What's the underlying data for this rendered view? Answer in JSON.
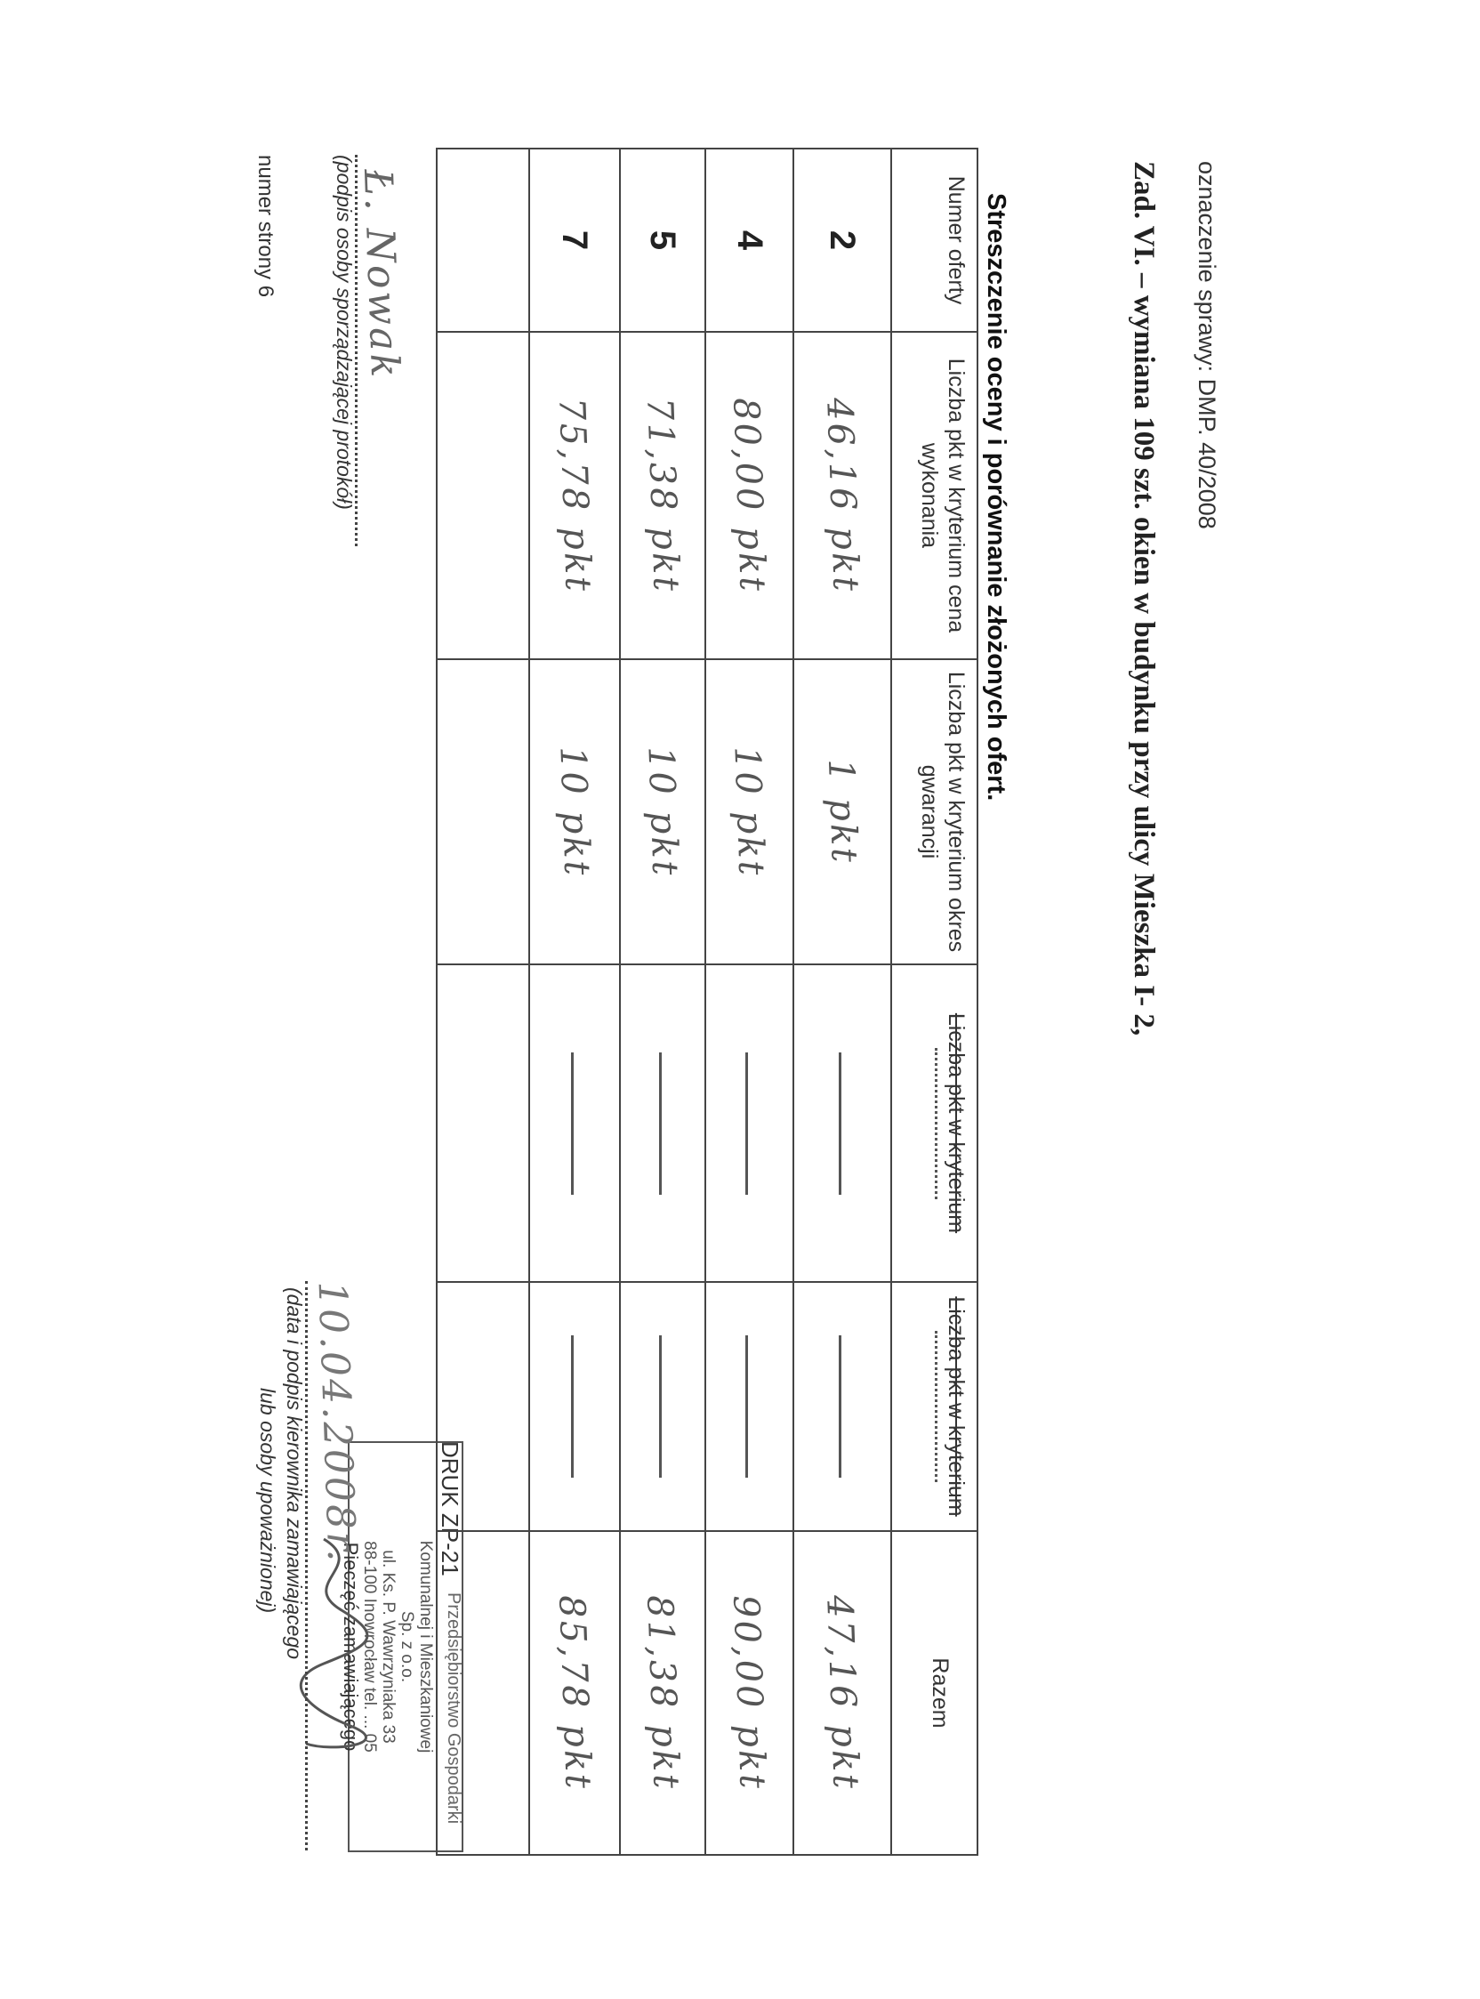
{
  "header": {
    "case_ref": "oznaczenie sprawy: DMP. 40/2008",
    "title": "Zad. VI. – wymiana 109 szt. okien w budynku przy ulicy Mieszka I- 2,",
    "section_title": "Streszczenie oceny i porównanie złożonych ofert."
  },
  "stamp": {
    "form_code": "DRUK ZP-21",
    "lines": [
      "Przedsiębiorstwo Gospodarki",
      "Komunalnej i Mieszkaniowej",
      "Sp. z o.o.",
      "ul. Ks. P. Wawrzyniaka 33",
      "88-100 Inowrocław",
      "tel. ... 05"
    ],
    "caption": "Pieczęć zamawiającego"
  },
  "table": {
    "headers": [
      "Numer oferty",
      "Liczba pkt w kryterium cena wykonania",
      "Liczba pkt w kryterium okres gwarancji",
      "Liczba pkt w kryterium",
      "Liczba pkt w kryterium",
      "Razem"
    ],
    "rows": [
      {
        "offer": "2",
        "price": "46,16 pkt",
        "warranty": "1 pkt",
        "c4": "—",
        "c5": "—",
        "total": "47,16 pkt"
      },
      {
        "offer": "4",
        "price": "80,00 pkt",
        "warranty": "10 pkt",
        "c4": "—",
        "c5": "—",
        "total": "90,00 pkt"
      },
      {
        "offer": "5",
        "price": "71,38 pkt",
        "warranty": "10 pkt",
        "c4": "—",
        "c5": "—",
        "total": "81,38 pkt"
      },
      {
        "offer": "7",
        "price": "75,78 pkt",
        "warranty": "10 pkt",
        "c4": "—",
        "c5": "—",
        "total": "85,78 pkt"
      }
    ]
  },
  "footer": {
    "preparer_signature": "Ł. Nowak",
    "preparer_caption": "(podpis osoby sporządzającej protokół)",
    "date_handwritten": "10.04.2008r.",
    "manager_caption_1": "(data i podpis kierownika zamawiającego",
    "manager_caption_2": "lub osoby upoważnionej)",
    "page_number": "numer strony 6"
  }
}
